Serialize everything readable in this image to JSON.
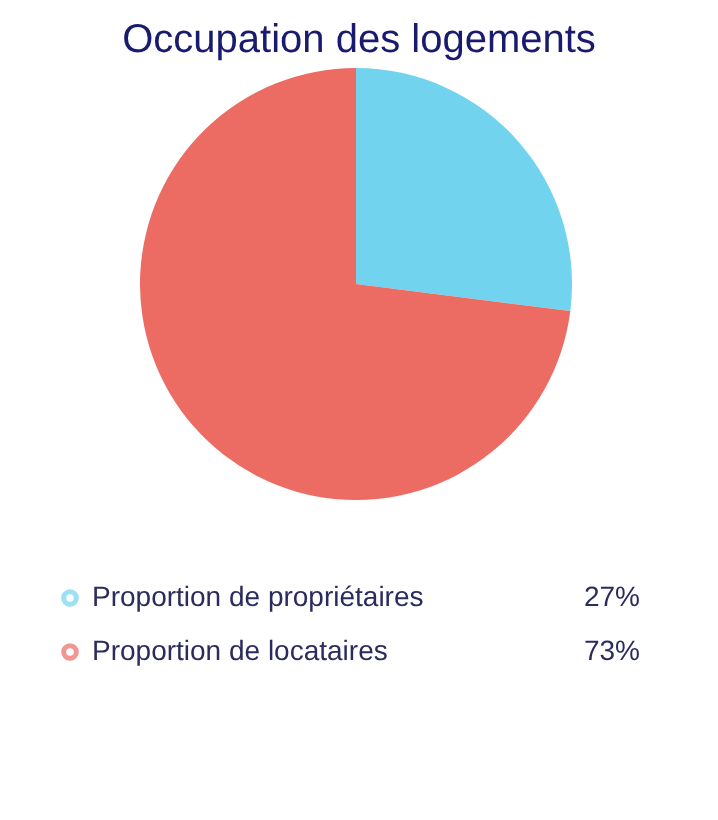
{
  "chart_data": {
    "type": "pie",
    "title": "Occupation des logements",
    "categories": [
      "Proportion de propriétaires",
      "Proportion de locataires"
    ],
    "values": [
      27,
      73
    ],
    "colors": [
      "#72d3ee",
      "#ec6b62"
    ],
    "value_labels": [
      "27%",
      "73%"
    ],
    "legend": "bottom"
  }
}
